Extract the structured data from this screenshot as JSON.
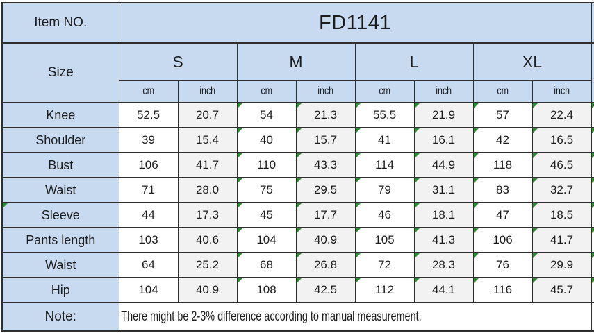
{
  "table": {
    "item_no_label": "Item NO.",
    "item_no_value": "FD1141",
    "size_label": "Size",
    "sizes": [
      "S",
      "M",
      "L",
      "XL"
    ],
    "unit_labels": [
      "cm",
      "inch"
    ],
    "rows": [
      {
        "label": "Knee",
        "values": [
          "52.5",
          "20.7",
          "54",
          "21.3",
          "55.5",
          "21.9",
          "57",
          "22.4"
        ]
      },
      {
        "label": "Shoulder",
        "values": [
          "39",
          "15.4",
          "40",
          "15.7",
          "41",
          "16.1",
          "42",
          "16.5"
        ]
      },
      {
        "label": "Bust",
        "values": [
          "106",
          "41.7",
          "110",
          "43.3",
          "114",
          "44.9",
          "118",
          "46.5"
        ]
      },
      {
        "label": "Waist",
        "values": [
          "71",
          "28.0",
          "75",
          "29.5",
          "79",
          "31.1",
          "83",
          "32.7"
        ]
      },
      {
        "label": "Sleeve",
        "values": [
          "44",
          "17.3",
          "45",
          "17.7",
          "46",
          "18.1",
          "47",
          "18.5"
        ],
        "label_flag": true
      },
      {
        "label": "Pants length",
        "values": [
          "103",
          "40.6",
          "104",
          "40.9",
          "105",
          "41.3",
          "106",
          "41.7"
        ]
      },
      {
        "label": "Waist",
        "values": [
          "64",
          "25.2",
          "68",
          "26.8",
          "72",
          "28.3",
          "76",
          "29.9"
        ]
      },
      {
        "label": "Hip",
        "values": [
          "104",
          "40.9",
          "108",
          "42.5",
          "112",
          "44.1",
          "116",
          "45.7"
        ]
      }
    ],
    "note_label": "Note:",
    "note_text": "There might be 2-3% difference according to manual measurement.",
    "flag_columns": [
      2,
      3,
      4,
      5,
      6,
      7
    ],
    "colors": {
      "header_blue": "#c7daf0",
      "inch_gray": "#f2f2f2",
      "border_dark": "#2f2f2f",
      "flag_green": "#2d8c2d"
    }
  }
}
